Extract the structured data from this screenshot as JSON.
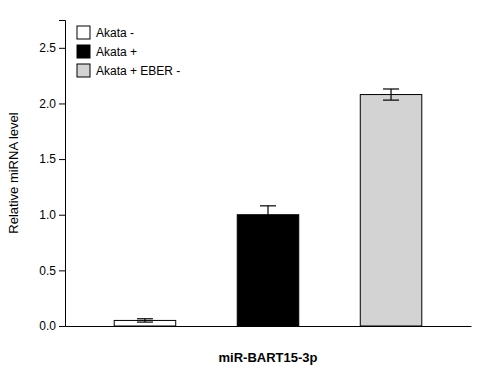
{
  "chart_data": {
    "type": "bar",
    "categories": [
      "Akata -",
      "Akata +",
      "Akata + EBER -"
    ],
    "values": [
      0.05,
      1.0,
      2.08
    ],
    "errors": [
      0.015,
      0.08,
      0.05
    ],
    "colors": [
      "#ffffff",
      "#000000",
      "#d3d3d3"
    ],
    "xlabel": "miR-BART15-3p",
    "ylabel": "Relative miRNA level",
    "ylim": [
      0,
      2.75
    ],
    "yticks": [
      {
        "value": 0.0,
        "label": "0.0"
      },
      0.5,
      {
        "value": 1.0,
        "label": "1.0"
      },
      1.5,
      {
        "value": 2.0,
        "label": "2.0"
      },
      2.5
    ],
    "legend": "upper left",
    "tick_labels": "y"
  }
}
